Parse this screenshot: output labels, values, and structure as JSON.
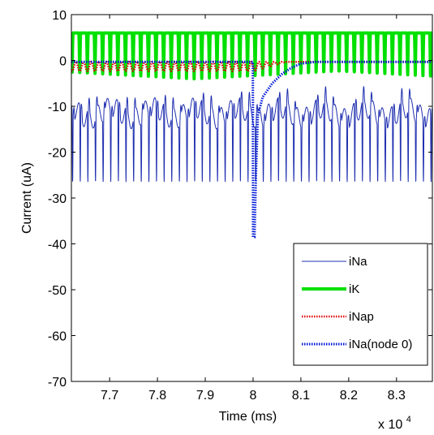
{
  "chart_data": {
    "type": "line",
    "xlabel": "Time (ms)",
    "ylabel": "Current (uA)",
    "x_multiplier_label": "x 10",
    "x_multiplier_exponent": "4",
    "xlim": [
      7.62,
      8.375
    ],
    "ylim": [
      -70,
      10
    ],
    "x_ticks": [
      7.7,
      7.8,
      7.9,
      8,
      8.1,
      8.2,
      8.3
    ],
    "x_tick_labels": [
      "7.7",
      "7.8",
      "7.9",
      "8",
      "8.1",
      "8.2",
      "8.3"
    ],
    "y_ticks": [
      10,
      0,
      -10,
      -20,
      -30,
      -40,
      -50,
      -60,
      -70
    ],
    "y_tick_labels": [
      "10",
      "0",
      "-10",
      "-20",
      "-30",
      "-40",
      "-50",
      "-60",
      "-70"
    ],
    "grid": false,
    "legend_position": "bottom-right",
    "series": [
      {
        "name": "iNa",
        "color": "#1f2fb0",
        "style": "solid-thin",
        "pattern": "periodic",
        "period": 0.01595,
        "baseline_range": [
          -14,
          -9
        ],
        "spike_min": -26.5,
        "spike_width": 0.0022
      },
      {
        "name": "iK",
        "color": "#00e000",
        "style": "solid-thick",
        "pattern": "periodic",
        "period": 0.01595,
        "max": 6,
        "min": -4
      },
      {
        "name": "iNap",
        "color": "#e00000",
        "style": "dotted",
        "pattern": "periodic",
        "period": 0.01595,
        "max": -0.3,
        "min": -2.3,
        "event_x": 8.0,
        "event_recovery_end": 8.07
      },
      {
        "name": "iNa(node 0)",
        "color": "#0018d8",
        "style": "dotted-thick",
        "x": [
          7.62,
          7.9995,
          8.0,
          8.003,
          8.006,
          8.01,
          8.02,
          8.04,
          8.06,
          8.08,
          8.1,
          8.13,
          8.375
        ],
        "y": [
          -0.3,
          -0.3,
          -38.5,
          -38.5,
          -25,
          -12,
          -8,
          -5,
          -3,
          -1.6,
          -0.7,
          -0.3,
          -0.3
        ]
      }
    ]
  }
}
